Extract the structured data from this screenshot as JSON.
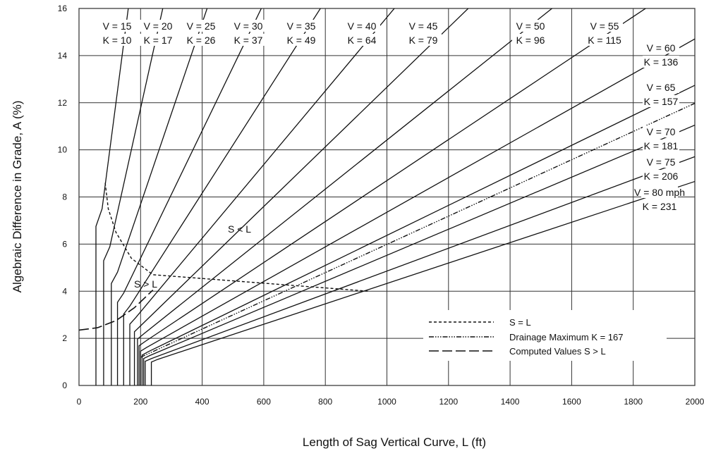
{
  "chart_data": {
    "type": "line",
    "xlabel": "Length of Sag Vertical Curve, L (ft)",
    "ylabel": "Algebraic Difference in Grade, A (%)",
    "xlim": [
      0,
      2000
    ],
    "ylim": [
      0,
      16
    ],
    "xticks": [
      0,
      200,
      400,
      600,
      800,
      1000,
      1200,
      1400,
      1600,
      1800,
      2000
    ],
    "yticks": [
      0,
      2,
      4,
      6,
      8,
      10,
      12,
      14,
      16
    ],
    "grid": true,
    "series": [
      {
        "v": "V = 15",
        "k": "K = 10",
        "K": 10,
        "min_length": 55
      },
      {
        "v": "V = 20",
        "k": "K = 17",
        "K": 17,
        "min_length": 80
      },
      {
        "v": "V = 25",
        "k": "K = 26",
        "K": 26,
        "min_length": 105
      },
      {
        "v": "V = 30",
        "k": "K = 37",
        "K": 37,
        "min_length": 125
      },
      {
        "v": "V = 35",
        "k": "K = 49",
        "K": 49,
        "min_length": 145
      },
      {
        "v": "V = 40",
        "k": "K = 64",
        "K": 64,
        "min_length": 165
      },
      {
        "v": "V = 45",
        "k": "K = 79",
        "K": 79,
        "min_length": 180
      },
      {
        "v": "V = 50",
        "k": "K = 96",
        "K": 96,
        "min_length": 190
      },
      {
        "v": "V = 55",
        "k": "K = 115",
        "K": 115,
        "min_length": 195
      },
      {
        "v": "V = 60",
        "k": "K = 136",
        "K": 136,
        "min_length": 200
      },
      {
        "v": "V = 65",
        "k": "K = 157",
        "K": 157,
        "min_length": 205
      },
      {
        "v": "V = 70",
        "k": "K = 181",
        "K": 181,
        "min_length": 210
      },
      {
        "v": "V = 75",
        "k": "K = 206",
        "K": 206,
        "min_length": 215
      },
      {
        "v": "V = 80 mph",
        "k": "K = 231",
        "K": 231,
        "min_length": 235
      }
    ],
    "drainage_line": {
      "name": "Drainage Maximum K = 167",
      "K": 167,
      "x_range": [
        200,
        2000
      ]
    },
    "s_equals_l": {
      "name": "S = L",
      "points": [
        [
          85,
          8.6
        ],
        [
          95,
          7.5
        ],
        [
          120,
          6.5
        ],
        [
          170,
          5.4
        ],
        [
          240,
          4.7
        ],
        [
          940,
          4.0
        ]
      ]
    },
    "computed_values": {
      "name": "Computed Values S > L",
      "points": [
        [
          0,
          2.35
        ],
        [
          60,
          2.45
        ],
        [
          120,
          2.75
        ],
        [
          180,
          3.3
        ],
        [
          240,
          4.05
        ]
      ]
    },
    "annotations": {
      "s_less_l": "S < L",
      "s_greater_l": "S > L"
    }
  }
}
